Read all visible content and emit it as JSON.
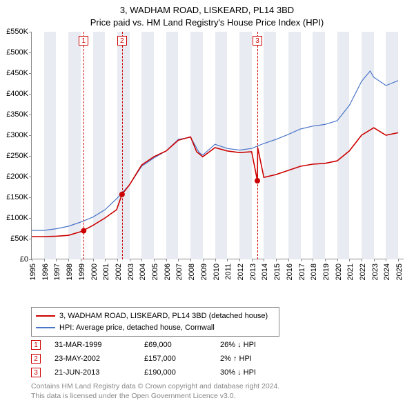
{
  "title_line1": "3, WADHAM ROAD, LISKEARD, PL14 3BD",
  "title_line2": "Price paid vs. HM Land Registry's House Price Index (HPI)",
  "chart": {
    "type": "line",
    "background_color": "#ffffff",
    "band_color": "#e8ebf1",
    "axis_color": "#888888",
    "xlim": [
      1995,
      2025.5
    ],
    "ylim": [
      0,
      550000
    ],
    "ytick_step": 50000,
    "yticks": [
      "£0",
      "£50K",
      "£100K",
      "£150K",
      "£200K",
      "£250K",
      "£300K",
      "£350K",
      "£400K",
      "£450K",
      "£500K",
      "£550K"
    ],
    "xticks": [
      1995,
      1996,
      1997,
      1998,
      1999,
      2000,
      2001,
      2002,
      2003,
      2004,
      2005,
      2006,
      2007,
      2008,
      2009,
      2010,
      2011,
      2012,
      2013,
      2014,
      2015,
      2016,
      2017,
      2018,
      2019,
      2020,
      2021,
      2022,
      2023,
      2024,
      2025
    ],
    "band_years": [
      1996,
      1998,
      2000,
      2002,
      2004,
      2006,
      2008,
      2010,
      2012,
      2014,
      2016,
      2018,
      2020,
      2022,
      2024
    ],
    "series_price": {
      "color": "#cc0000",
      "width": 1.6,
      "label": "3, WADHAM ROAD, LISKEARD, PL14 3BD (detached house)",
      "data": [
        [
          1995,
          55000
        ],
        [
          1996,
          55000
        ],
        [
          1997,
          56000
        ],
        [
          1998,
          58000
        ],
        [
          1999.25,
          69000
        ],
        [
          1999.3,
          71000
        ],
        [
          2000,
          82000
        ],
        [
          2001,
          100000
        ],
        [
          2001.95,
          120000
        ],
        [
          2002.39,
          157000
        ],
        [
          2003,
          180000
        ],
        [
          2004,
          228000
        ],
        [
          2005,
          248000
        ],
        [
          2006,
          262000
        ],
        [
          2007,
          288000
        ],
        [
          2008,
          296000
        ],
        [
          2008.5,
          260000
        ],
        [
          2009,
          248000
        ],
        [
          2010,
          270000
        ],
        [
          2011,
          262000
        ],
        [
          2012,
          258000
        ],
        [
          2013,
          260000
        ],
        [
          2013.47,
          190000
        ],
        [
          2013.5,
          270000
        ],
        [
          2014,
          198000
        ],
        [
          2015,
          205000
        ],
        [
          2016,
          215000
        ],
        [
          2017,
          225000
        ],
        [
          2018,
          230000
        ],
        [
          2019,
          232000
        ],
        [
          2020,
          238000
        ],
        [
          2021,
          262000
        ],
        [
          2022,
          300000
        ],
        [
          2023,
          318000
        ],
        [
          2024,
          300000
        ],
        [
          2025,
          306000
        ]
      ]
    },
    "series_hpi": {
      "color": "#4a74c9",
      "width": 1.2,
      "label": "HPI: Average price, detached house, Cornwall",
      "data": [
        [
          1995,
          70000
        ],
        [
          1996,
          70000
        ],
        [
          1997,
          74000
        ],
        [
          1998,
          80000
        ],
        [
          1999,
          90000
        ],
        [
          2000,
          102000
        ],
        [
          2001,
          120000
        ],
        [
          2002,
          148000
        ],
        [
          2003,
          180000
        ],
        [
          2004,
          225000
        ],
        [
          2005,
          245000
        ],
        [
          2006,
          262000
        ],
        [
          2007,
          290000
        ],
        [
          2008,
          295000
        ],
        [
          2008.7,
          258000
        ],
        [
          2009,
          252000
        ],
        [
          2010,
          278000
        ],
        [
          2011,
          268000
        ],
        [
          2012,
          264000
        ],
        [
          2013,
          268000
        ],
        [
          2014,
          280000
        ],
        [
          2015,
          290000
        ],
        [
          2016,
          302000
        ],
        [
          2017,
          315000
        ],
        [
          2018,
          322000
        ],
        [
          2019,
          326000
        ],
        [
          2020,
          335000
        ],
        [
          2021,
          372000
        ],
        [
          2022,
          430000
        ],
        [
          2022.7,
          455000
        ],
        [
          2023,
          440000
        ],
        [
          2024,
          420000
        ],
        [
          2025,
          432000
        ]
      ]
    },
    "sale_markers": [
      {
        "idx": "1",
        "year": 1999.25,
        "price": 69000
      },
      {
        "idx": "2",
        "year": 2002.39,
        "price": 157000
      },
      {
        "idx": "3",
        "year": 2013.47,
        "price": 190000
      }
    ]
  },
  "legend": {
    "row1_label": "3, WADHAM ROAD, LISKEARD, PL14 3BD (detached house)",
    "row2_label": "HPI: Average price, detached house, Cornwall"
  },
  "sales": [
    {
      "idx": "1",
      "date": "31-MAR-1999",
      "price": "£69,000",
      "delta": "26% ↓ HPI"
    },
    {
      "idx": "2",
      "date": "23-MAY-2002",
      "price": "£157,000",
      "delta": "2% ↑ HPI"
    },
    {
      "idx": "3",
      "date": "21-JUN-2013",
      "price": "£190,000",
      "delta": "30% ↓ HPI"
    }
  ],
  "footer_line1": "Contains HM Land Registry data © Crown copyright and database right 2024.",
  "footer_line2": "This data is licensed under the Open Government Licence v3.0."
}
